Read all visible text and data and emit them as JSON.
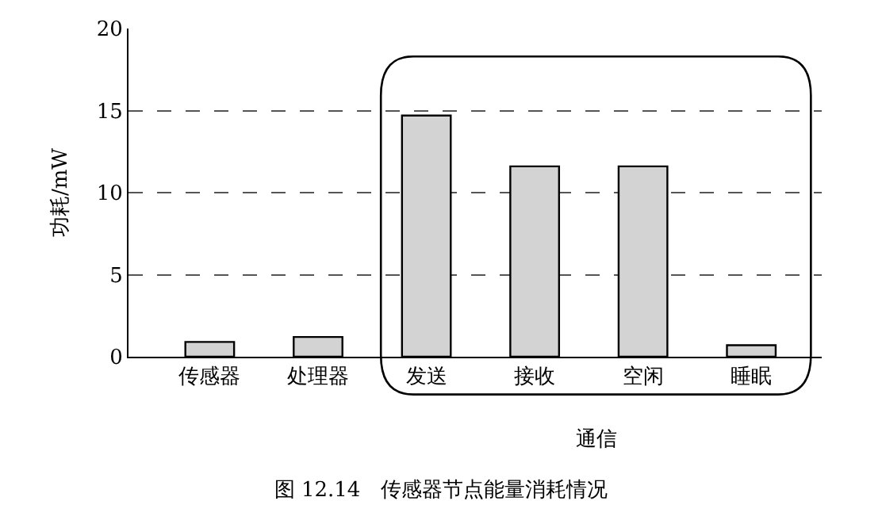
{
  "chart_data": {
    "type": "bar",
    "title": "图 12.14　传感器节点能量消耗情况",
    "ylabel": "功耗/mW",
    "categories": [
      "传感器",
      "处理器",
      "发送",
      "接收",
      "空闲",
      "睡眠"
    ],
    "values": [
      0.9,
      1.2,
      14.7,
      11.6,
      11.6,
      0.7
    ],
    "color": "#d3d3d3",
    "annotations": [
      "通信"
    ],
    "ylim": [
      0,
      20
    ],
    "yticks": [
      0,
      5,
      10,
      15,
      20
    ],
    "grid": "y"
  }
}
